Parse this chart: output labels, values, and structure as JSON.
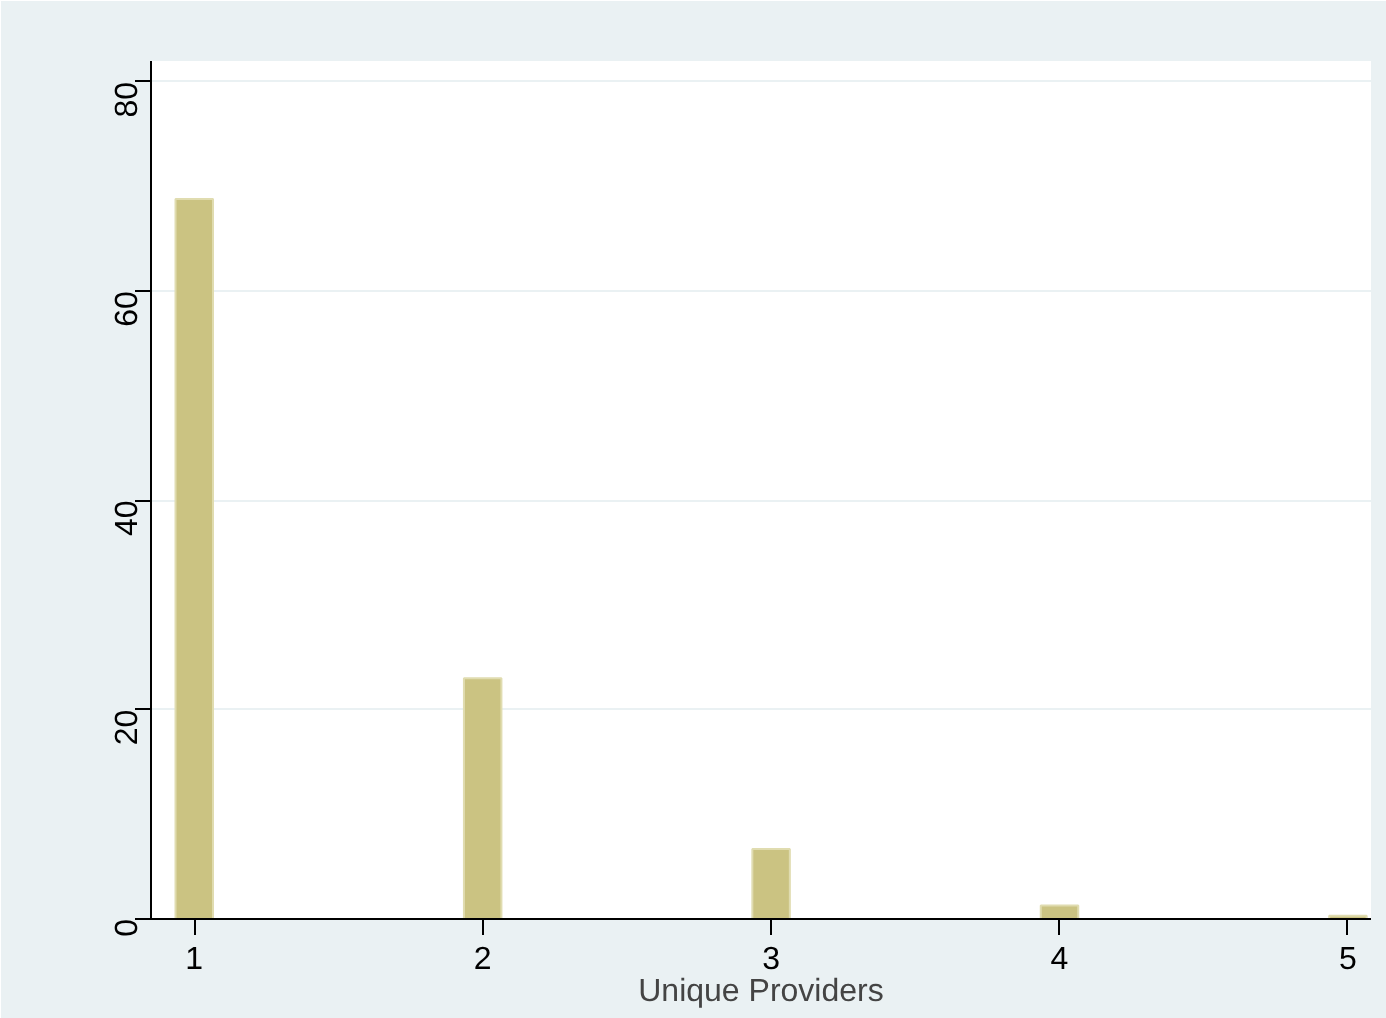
{
  "chart_data": {
    "type": "bar",
    "xlabel": "Unique Providers",
    "x": [
      1,
      2,
      3,
      4,
      5
    ],
    "values": [
      68.8,
      23.0,
      6.7,
      1.3,
      0.3
    ],
    "color": "#cbc382",
    "xlim": [
      0.85,
      5.08
    ],
    "ylim": [
      0,
      82
    ],
    "xticks": [
      1,
      2,
      3,
      4,
      5
    ],
    "yticks": [
      0,
      20,
      40,
      60,
      80
    ],
    "grid": "y"
  }
}
